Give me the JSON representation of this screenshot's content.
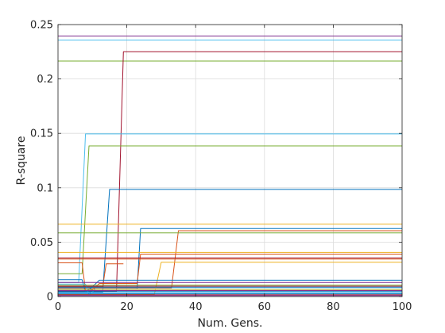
{
  "chart_data": {
    "type": "line",
    "xlabel": "Num. Gens.",
    "ylabel": "R-square",
    "xlim": [
      0,
      100
    ],
    "ylim": [
      0,
      0.25
    ],
    "x_ticks": [
      0,
      20,
      40,
      60,
      80,
      100
    ],
    "y_ticks": [
      0,
      0.05,
      0.1,
      0.15,
      0.2,
      0.25
    ],
    "y_tick_labels": [
      "0",
      "0.05",
      "0.1",
      "0.15",
      "0.2",
      "0.25"
    ],
    "grid": true,
    "legend": "none",
    "series": [
      {
        "color": "#7E2F8E",
        "points": [
          [
            0,
            0.2395
          ],
          [
            100,
            0.2395
          ]
        ]
      },
      {
        "color": "#4DBEEE",
        "points": [
          [
            0,
            0.2358
          ],
          [
            100,
            0.2358
          ]
        ]
      },
      {
        "color": "#77AC30",
        "points": [
          [
            0,
            0.2165
          ],
          [
            100,
            0.2165
          ]
        ]
      },
      {
        "color": "#A2142F",
        "points": [
          [
            0,
            0.005
          ],
          [
            17,
            0.005
          ],
          [
            19,
            0.225
          ],
          [
            100,
            0.225
          ]
        ]
      },
      {
        "color": "#4DBEEE",
        "points": [
          [
            0,
            0.013
          ],
          [
            6,
            0.013
          ],
          [
            8,
            0.1495
          ],
          [
            100,
            0.1495
          ]
        ]
      },
      {
        "color": "#77AC30",
        "points": [
          [
            0,
            0.021
          ],
          [
            7,
            0.021
          ],
          [
            9,
            0.1385
          ],
          [
            100,
            0.1385
          ]
        ]
      },
      {
        "color": "#0072BD",
        "points": [
          [
            0,
            0.004
          ],
          [
            13,
            0.004
          ],
          [
            15,
            0.0985
          ],
          [
            100,
            0.0985
          ]
        ]
      },
      {
        "color": "#EDB120",
        "points": [
          [
            0,
            0.0665
          ],
          [
            100,
            0.0665
          ]
        ]
      },
      {
        "color": "#0072BD",
        "points": [
          [
            0,
            0.007
          ],
          [
            23,
            0.007
          ],
          [
            24,
            0.0625
          ],
          [
            100,
            0.0625
          ]
        ]
      },
      {
        "color": "#D95319",
        "points": [
          [
            0,
            0.008
          ],
          [
            33,
            0.008
          ],
          [
            35,
            0.0605
          ],
          [
            100,
            0.0605
          ]
        ]
      },
      {
        "color": "#77AC30",
        "points": [
          [
            0,
            0.0585
          ],
          [
            100,
            0.0585
          ]
        ]
      },
      {
        "color": "#EDB120",
        "points": [
          [
            0,
            0.0405
          ],
          [
            100,
            0.0405
          ]
        ]
      },
      {
        "color": "#D95319",
        "points": [
          [
            0,
            0.031
          ],
          [
            7,
            0.031
          ],
          [
            8,
            0.005
          ],
          [
            10,
            0.006
          ],
          [
            12,
            0.012
          ],
          [
            23,
            0.012
          ],
          [
            24,
            0.039
          ],
          [
            100,
            0.039
          ]
        ]
      },
      {
        "color": "#A2142F",
        "points": [
          [
            0,
            0.0355
          ],
          [
            100,
            0.0355
          ]
        ]
      },
      {
        "color": "#D95319",
        "points": [
          [
            0,
            0.0345
          ],
          [
            100,
            0.0345
          ]
        ]
      },
      {
        "color": "#EDB120",
        "points": [
          [
            0,
            0.002
          ],
          [
            28,
            0.002
          ],
          [
            30,
            0.0315
          ],
          [
            100,
            0.0315
          ]
        ]
      },
      {
        "color": "#D95319",
        "points": [
          [
            0,
            0.009
          ],
          [
            13,
            0.009
          ],
          [
            14,
            0.03
          ],
          [
            19,
            0.03
          ]
        ]
      },
      {
        "color": "#0072BD",
        "points": [
          [
            0,
            0.0155
          ],
          [
            7,
            0.0155
          ],
          [
            8,
            0.004
          ],
          [
            10,
            0.009
          ],
          [
            12,
            0.015
          ],
          [
            100,
            0.015
          ]
        ]
      },
      {
        "color": "#7E2F8E",
        "points": [
          [
            0,
            0.013
          ],
          [
            100,
            0.013
          ]
        ]
      },
      {
        "color": "#4DBEEE",
        "points": [
          [
            0,
            0.0115
          ],
          [
            8,
            0.0115
          ],
          [
            9,
            0.002
          ],
          [
            11,
            0.007
          ],
          [
            100,
            0.007
          ]
        ]
      },
      {
        "color": "#77AC30",
        "points": [
          [
            0,
            0.0105
          ],
          [
            100,
            0.0105
          ]
        ]
      },
      {
        "color": "#A2142F",
        "points": [
          [
            0,
            0.0095
          ],
          [
            100,
            0.0095
          ]
        ]
      },
      {
        "color": "#0072BD",
        "points": [
          [
            0,
            0.0085
          ],
          [
            100,
            0.0085
          ]
        ]
      },
      {
        "color": "#EDB120",
        "points": [
          [
            0,
            0.0065
          ],
          [
            100,
            0.0065
          ]
        ]
      },
      {
        "color": "#7E2F8E",
        "points": [
          [
            0,
            0.0055
          ],
          [
            100,
            0.0055
          ]
        ]
      },
      {
        "color": "#0072BD",
        "points": [
          [
            0,
            0.0045
          ],
          [
            100,
            0.0045
          ]
        ]
      },
      {
        "color": "#4DBEEE",
        "points": [
          [
            0,
            0.0035
          ],
          [
            100,
            0.0035
          ]
        ]
      },
      {
        "color": "#0072BD",
        "points": [
          [
            0,
            0.0025
          ],
          [
            100,
            0.0025
          ]
        ]
      },
      {
        "color": "#A2142F",
        "points": [
          [
            0,
            0.0015
          ],
          [
            100,
            0.0015
          ]
        ]
      },
      {
        "color": "#7E2F8E",
        "points": [
          [
            0,
            0.0008
          ],
          [
            100,
            0.0008
          ]
        ]
      }
    ]
  }
}
